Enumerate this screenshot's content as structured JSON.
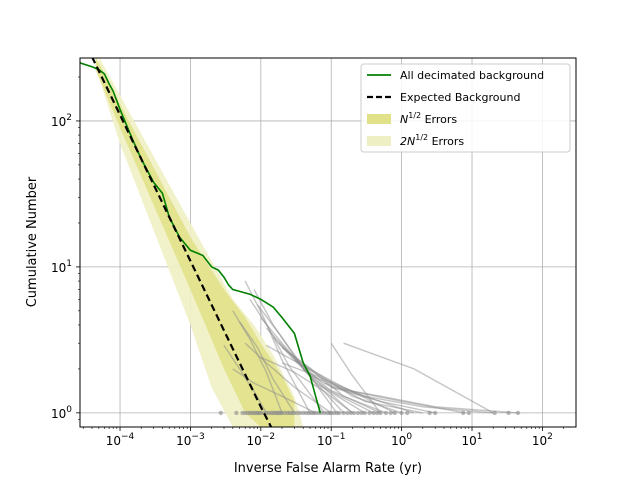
{
  "chart_data": {
    "type": "line",
    "title": "",
    "xlabel": "Inverse False Alarm Rate (yr)",
    "ylabel": "Cumulative Number",
    "xscale": "log",
    "yscale": "log",
    "xlim": [
      2.7e-05,
      300
    ],
    "ylim": [
      0.8,
      270
    ],
    "grid": true,
    "legend_position": "top-right",
    "x_ticks": [
      {
        "value": 0.0001,
        "base": "10",
        "exp": "−4"
      },
      {
        "value": 0.001,
        "base": "10",
        "exp": "−3"
      },
      {
        "value": 0.01,
        "base": "10",
        "exp": "−2"
      },
      {
        "value": 0.1,
        "base": "10",
        "exp": "−1"
      },
      {
        "value": 1,
        "base": "10",
        "exp": "0"
      },
      {
        "value": 10,
        "base": "10",
        "exp": "1"
      },
      {
        "value": 100,
        "base": "10",
        "exp": "2"
      }
    ],
    "y_ticks": [
      {
        "value": 1,
        "base": "10",
        "exp": "0"
      },
      {
        "value": 10,
        "base": "10",
        "exp": "1"
      },
      {
        "value": 100,
        "base": "10",
        "exp": "2"
      }
    ],
    "legend": [
      {
        "label": "All decimated background",
        "style": "line",
        "color": "#008000"
      },
      {
        "label": "Expected Background",
        "style": "dashed",
        "color": "#000000"
      },
      {
        "label_base": "N",
        "label_sup": "1/2",
        "label_rest": " Errors",
        "style": "patch",
        "color": "#e1e18a"
      },
      {
        "label_base": "2N",
        "label_sup": "1/2",
        "label_rest": " Errors",
        "style": "patch",
        "color": "#efefc4"
      }
    ],
    "series": [
      {
        "name": "All decimated background",
        "color": "#008000",
        "x": [
          2.7e-05,
          4e-05,
          5e-05,
          6e-05,
          7e-05,
          8e-05,
          0.0001,
          0.00015,
          0.0002,
          0.0003,
          0.0004,
          0.0005,
          0.0007,
          0.001,
          0.0015,
          0.002,
          0.0025,
          0.003,
          0.0035,
          0.004,
          0.005,
          0.007,
          0.01,
          0.015,
          0.02,
          0.03,
          0.04,
          0.05,
          0.06,
          0.07
        ],
        "y": [
          250,
          235,
          225,
          210,
          180,
          160,
          120,
          75,
          55,
          38,
          32,
          22,
          16,
          13,
          12,
          10,
          9.5,
          8.5,
          7.5,
          7,
          6.8,
          6.5,
          6,
          5.3,
          4.5,
          3.5,
          2.2,
          1.8,
          1.3,
          1.0
        ]
      },
      {
        "name": "Expected Background",
        "color": "#000000",
        "x": [
          4e-05,
          0.0001,
          0.001,
          0.01,
          0.014
        ],
        "y": [
          275,
          110,
          11,
          1.1,
          0.8
        ]
      }
    ],
    "error_bands": [
      {
        "name": "N^1/2 Errors",
        "color": "#e1e18a",
        "x": [
          4.5e-05,
          0.0001,
          0.001,
          0.003,
          0.006,
          0.01,
          0.02,
          0.03
        ],
        "upper": [
          275,
          130,
          16,
          7,
          4.5,
          3,
          1.8,
          1.2
        ],
        "lower": [
          225,
          90,
          7,
          2,
          1,
          0.8,
          0.8,
          0.8
        ]
      },
      {
        "name": "2N^1/2 Errors",
        "color": "#efefc4",
        "x": [
          5e-05,
          0.0001,
          0.001,
          0.002,
          0.004,
          0.008,
          0.015,
          0.03,
          0.04
        ],
        "upper": [
          275,
          150,
          20,
          11,
          6,
          4,
          2.5,
          1.3,
          0.8
        ],
        "lower": [
          200,
          70,
          4,
          1.5,
          0.8,
          0.8,
          0.8,
          0.8,
          0.8
        ]
      }
    ],
    "gray_curves": [
      {
        "x": [
          0.003,
          0.005,
          0.008,
          0.012
        ],
        "y": [
          2.9,
          2.0,
          1.4,
          1.0
        ]
      },
      {
        "x": [
          0.004,
          0.007,
          0.012,
          0.02
        ],
        "y": [
          5.0,
          3.2,
          1.9,
          1.0
        ]
      },
      {
        "x": [
          0.005,
          0.009,
          0.015,
          0.03
        ],
        "y": [
          4.2,
          2.8,
          1.7,
          1.0
        ]
      },
      {
        "x": [
          0.006,
          0.011,
          0.02,
          0.05
        ],
        "y": [
          8.0,
          4.5,
          2.3,
          1.0
        ]
      },
      {
        "x": [
          0.007,
          0.013,
          0.025,
          0.08
        ],
        "y": [
          6.0,
          3.8,
          2.1,
          1.0
        ]
      },
      {
        "x": [
          0.008,
          0.015,
          0.03,
          0.12
        ],
        "y": [
          7.0,
          4.0,
          2.5,
          1.0
        ]
      },
      {
        "x": [
          0.009,
          0.018,
          0.04,
          0.15
        ],
        "y": [
          5.5,
          3.5,
          2.0,
          1.0
        ]
      },
      {
        "x": [
          0.01,
          0.02,
          0.05,
          0.2
        ],
        "y": [
          4.5,
          3.0,
          1.8,
          1.0
        ]
      },
      {
        "x": [
          0.012,
          0.025,
          0.06,
          0.3
        ],
        "y": [
          3.8,
          2.6,
          1.6,
          1.0
        ]
      },
      {
        "x": [
          0.015,
          0.03,
          0.08,
          0.5
        ],
        "y": [
          3.3,
          2.3,
          1.5,
          1.0
        ]
      },
      {
        "x": [
          0.018,
          0.04,
          0.1,
          0.4
        ],
        "y": [
          3.0,
          2.1,
          1.4,
          1.0
        ]
      },
      {
        "x": [
          0.02,
          0.05,
          0.15,
          0.6
        ],
        "y": [
          2.8,
          2.0,
          1.3,
          1.0
        ]
      },
      {
        "x": [
          0.025,
          0.06,
          0.2,
          1.0
        ],
        "y": [
          2.6,
          1.9,
          1.3,
          1.0
        ]
      },
      {
        "x": [
          0.03,
          0.08,
          0.3,
          2.0
        ],
        "y": [
          2.3,
          1.7,
          1.2,
          1.0
        ]
      },
      {
        "x": [
          0.04,
          0.1,
          0.5,
          3.0
        ],
        "y": [
          2.0,
          1.5,
          1.2,
          1.0
        ]
      },
      {
        "x": [
          0.05,
          0.2,
          1.0,
          8.0
        ],
        "y": [
          1.8,
          1.4,
          1.2,
          1.0
        ]
      },
      {
        "x": [
          0.08,
          0.3,
          2.0,
          20.0
        ],
        "y": [
          1.6,
          1.3,
          1.1,
          1.0
        ]
      },
      {
        "x": [
          0.1,
          0.5,
          3.0,
          45.0
        ],
        "y": [
          1.5,
          1.3,
          1.1,
          1.0
        ]
      },
      {
        "x": [
          0.15,
          1.5,
          20.0
        ],
        "y": [
          3.0,
          2.0,
          1.0
        ]
      },
      {
        "x": [
          0.1,
          0.2,
          0.5
        ],
        "y": [
          3.0,
          1.8,
          1.0
        ]
      },
      {
        "x": [
          0.01,
          0.03,
          0.08,
          0.2
        ],
        "y": [
          2.4,
          1.9,
          1.4,
          1.0
        ]
      },
      {
        "x": [
          0.006,
          0.012,
          0.03,
          0.1
        ],
        "y": [
          3.0,
          2.2,
          1.5,
          1.0
        ]
      },
      {
        "x": [
          0.004,
          0.008,
          0.02,
          0.06
        ],
        "y": [
          2.0,
          1.6,
          1.3,
          1.0
        ]
      },
      {
        "x": [
          0.02,
          0.06,
          0.3,
          1.5
        ],
        "y": [
          2.2,
          1.8,
          1.3,
          1.0
        ]
      },
      {
        "x": [
          0.012,
          0.04,
          0.15,
          0.8
        ],
        "y": [
          2.9,
          2.1,
          1.5,
          1.0
        ]
      }
    ],
    "gray_points": {
      "y": 1,
      "x": [
        0.0027,
        0.0045,
        0.0055,
        0.006,
        0.0065,
        0.007,
        0.0075,
        0.008,
        0.0085,
        0.009,
        0.0095,
        0.01,
        0.011,
        0.012,
        0.013,
        0.014,
        0.015,
        0.016,
        0.017,
        0.018,
        0.019,
        0.02,
        0.022,
        0.024,
        0.026,
        0.028,
        0.03,
        0.033,
        0.036,
        0.04,
        0.044,
        0.048,
        0.052,
        0.056,
        0.06,
        0.066,
        0.072,
        0.08,
        0.088,
        0.095,
        0.1,
        0.11,
        0.12,
        0.13,
        0.15,
        0.17,
        0.19,
        0.21,
        0.24,
        0.27,
        0.3,
        0.35,
        0.4,
        0.45,
        0.5,
        0.6,
        0.7,
        0.8,
        1.0,
        1.2,
        2.5,
        3.0,
        7.5,
        9.0,
        21,
        33,
        45
      ]
    }
  }
}
